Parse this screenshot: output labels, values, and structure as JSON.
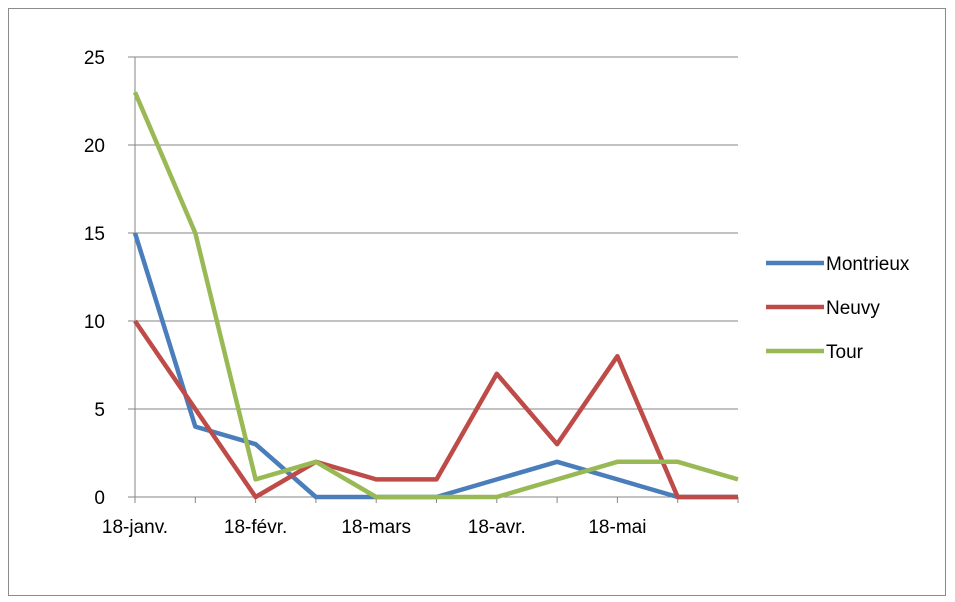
{
  "chart_data": {
    "type": "line",
    "title": "",
    "xlabel": "",
    "ylabel": "",
    "x": [
      "18-janv.",
      "",
      "18-févr.",
      "",
      "18-mars",
      "",
      "18-avr.",
      "",
      "18-mai",
      "",
      ""
    ],
    "x_tick_labels": [
      "18-janv.",
      "18-févr.",
      "18-mars",
      "18-avr.",
      "18-mai"
    ],
    "x_tick_positions": [
      0,
      2,
      4,
      6,
      8
    ],
    "ylim": [
      0,
      25
    ],
    "y_ticks": [
      0,
      5,
      10,
      15,
      20,
      25
    ],
    "grid": "horizontal",
    "legend_position": "right",
    "series": [
      {
        "name": "Montrieux",
        "color": "#4a7ebb",
        "values": [
          15,
          4,
          3,
          0,
          0,
          0,
          1,
          2,
          1,
          0,
          0
        ]
      },
      {
        "name": "Neuvy",
        "color": "#be4b48",
        "values": [
          10,
          5,
          0,
          2,
          1,
          1,
          7,
          3,
          8,
          0,
          0
        ]
      },
      {
        "name": "Tour",
        "color": "#98b954",
        "values": [
          23,
          15,
          1,
          2,
          0,
          0,
          0,
          1,
          2,
          2,
          1
        ]
      }
    ]
  }
}
